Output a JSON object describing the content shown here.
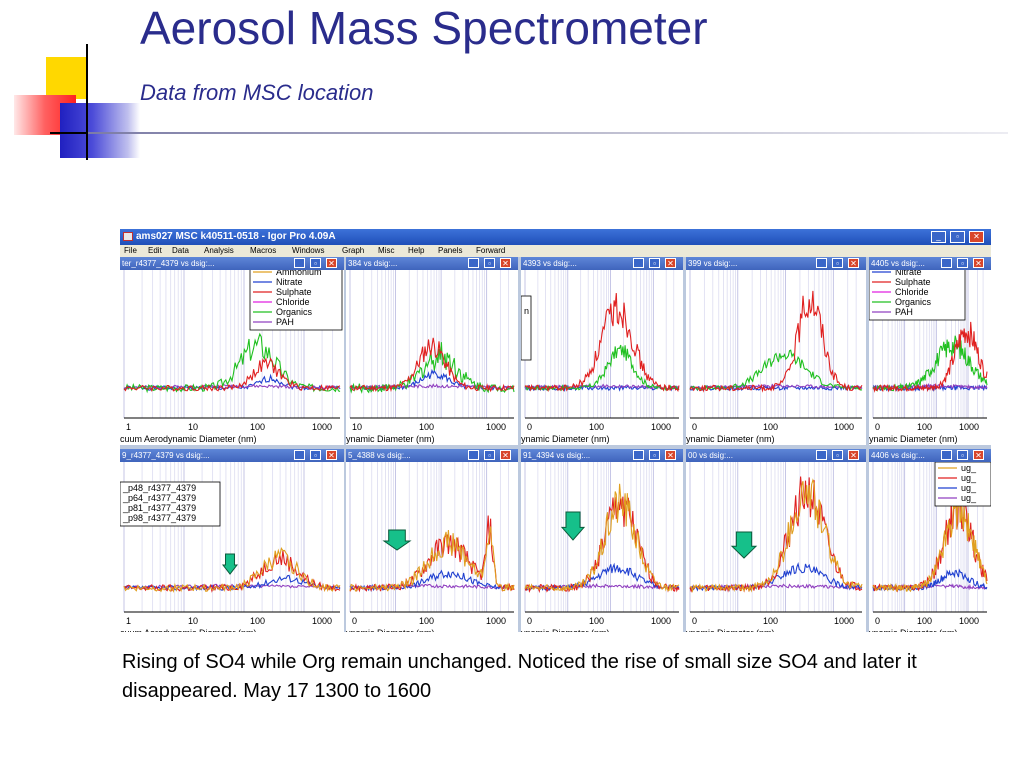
{
  "slide": {
    "title": "Aerosol Mass Spectrometer",
    "subtitle": "Data from MSC location",
    "caption": "Rising of SO4 while Org remain unchanged. Noticed the rise of small size SO4 and later it disappeared. May 17 1300 to 1600"
  },
  "igor": {
    "window_title": "ams027 MSC k40511-0518 - Igor Pro 4.09A",
    "menu": [
      "File",
      "Edit",
      "Data",
      "Analysis",
      "Macros",
      "Windows",
      "Graph",
      "Misc",
      "Help",
      "Panels",
      "Forward"
    ],
    "panels": [
      {
        "title": "ter_r4377_4379 vs dsig:...",
        "xlabel": "cuum Aerodynamic Diameter (nm)",
        "ticks": [
          "1",
          "10",
          "100",
          "1000"
        ]
      },
      {
        "title": "384 vs dsig:...",
        "xlabel": "ynamic Diameter (nm)",
        "ticks": [
          "10",
          "100",
          "1000"
        ]
      },
      {
        "title": "4393 vs dsig:...",
        "xlabel": "ynamic Diameter (nm)",
        "ticks": [
          "0",
          "100",
          "1000"
        ]
      },
      {
        "title": "399 vs dsig:...",
        "xlabel": "ynamic Diameter (nm)",
        "ticks": [
          "0",
          "100",
          "1000"
        ]
      },
      {
        "title": "4405 vs dsig:...",
        "xlabel": "ynamic Diameter (nm)",
        "ticks": [
          "0",
          "100",
          "1000"
        ]
      },
      {
        "title": "9_r4377_4379 vs dsig:...",
        "xlabel": "cuum Aerodynamic Diameter (nm)",
        "ticks": [
          "1",
          "10",
          "100",
          "1000"
        ]
      },
      {
        "title": "5_4388 vs dsig:...",
        "xlabel": "ynamic Diameter (nm)",
        "ticks": [
          "0",
          "100",
          "1000"
        ]
      },
      {
        "title": "91_4394 vs dsig:...",
        "xlabel": "ynamic Diameter (nm)",
        "ticks": [
          "0",
          "100",
          "1000"
        ]
      },
      {
        "title": "00 vs dsig:...",
        "xlabel": "ynamic Diameter (nm)",
        "ticks": [
          "0",
          "100",
          "1000"
        ]
      },
      {
        "title": "4406 vs dsig:...",
        "xlabel": "ynamic Diameter (nm)",
        "ticks": [
          "0",
          "100",
          "1000"
        ]
      }
    ],
    "legend_species": {
      "entries": [
        "Ammonium",
        "Nitrate",
        "Sulphate",
        "Chloride",
        "Organics",
        "PAH"
      ],
      "colors": [
        "#e0a020",
        "#2040d0",
        "#e02020",
        "#e020e0",
        "#20c020",
        "#9040c0"
      ]
    },
    "legend_right_top": [
      "Nitrate",
      "Sulphate",
      "Chloride",
      "Organics",
      "PAH"
    ],
    "legend_runs": [
      "_p48_r4377_4379",
      "_p64_r4377_4379",
      "_p81_r4377_4379",
      "_p98_r4377_4379"
    ],
    "legend_ug": [
      "ug_",
      "ug_",
      "ug_",
      "ug_"
    ],
    "partial_label": "n",
    "colors": {
      "ammonium": "#e0a020",
      "nitrate": "#2040d0",
      "sulphate": "#e02020",
      "organics": "#20c020",
      "pah": "#9040c0",
      "arrow": "#16c08a",
      "arrow_border": "#0a5a3a"
    }
  }
}
